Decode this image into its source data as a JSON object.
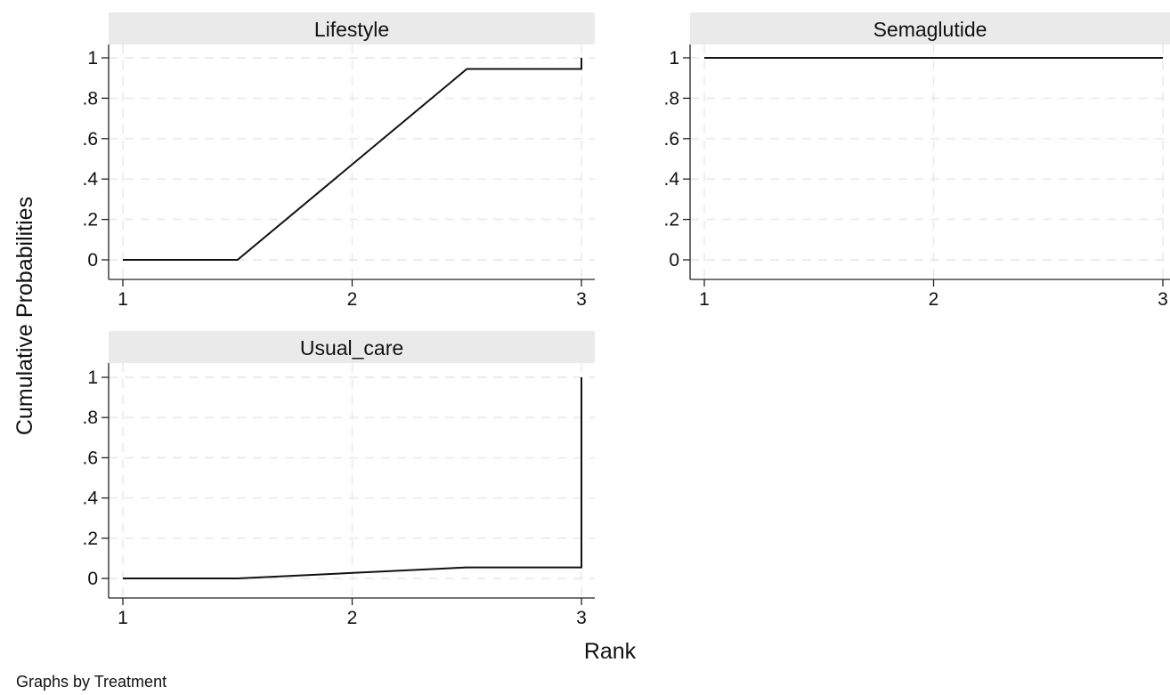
{
  "chart_data": {
    "type": "line",
    "by_note": "Graphs by Treatment",
    "xlabel": "Rank",
    "ylabel": "Cumulative Probabilities",
    "xlim": [
      1,
      3
    ],
    "ylim": [
      0,
      1
    ],
    "x_ticks": [
      "1",
      "2",
      "3"
    ],
    "y_ticks": [
      "0",
      ".2",
      ".4",
      ".6",
      ".8",
      "1"
    ],
    "grid": true,
    "panels": [
      {
        "title": "Lifestyle",
        "x": [
          1,
          1.5,
          2.5,
          3,
          3
        ],
        "y": [
          0,
          0,
          0.945,
          0.945,
          1
        ]
      },
      {
        "title": "Semaglutide",
        "x": [
          1,
          3
        ],
        "y": [
          1,
          1
        ]
      },
      {
        "title": "Usual_care",
        "x": [
          1,
          1.5,
          2.5,
          3,
          3
        ],
        "y": [
          0,
          0,
          0.055,
          0.055,
          1
        ]
      }
    ]
  }
}
